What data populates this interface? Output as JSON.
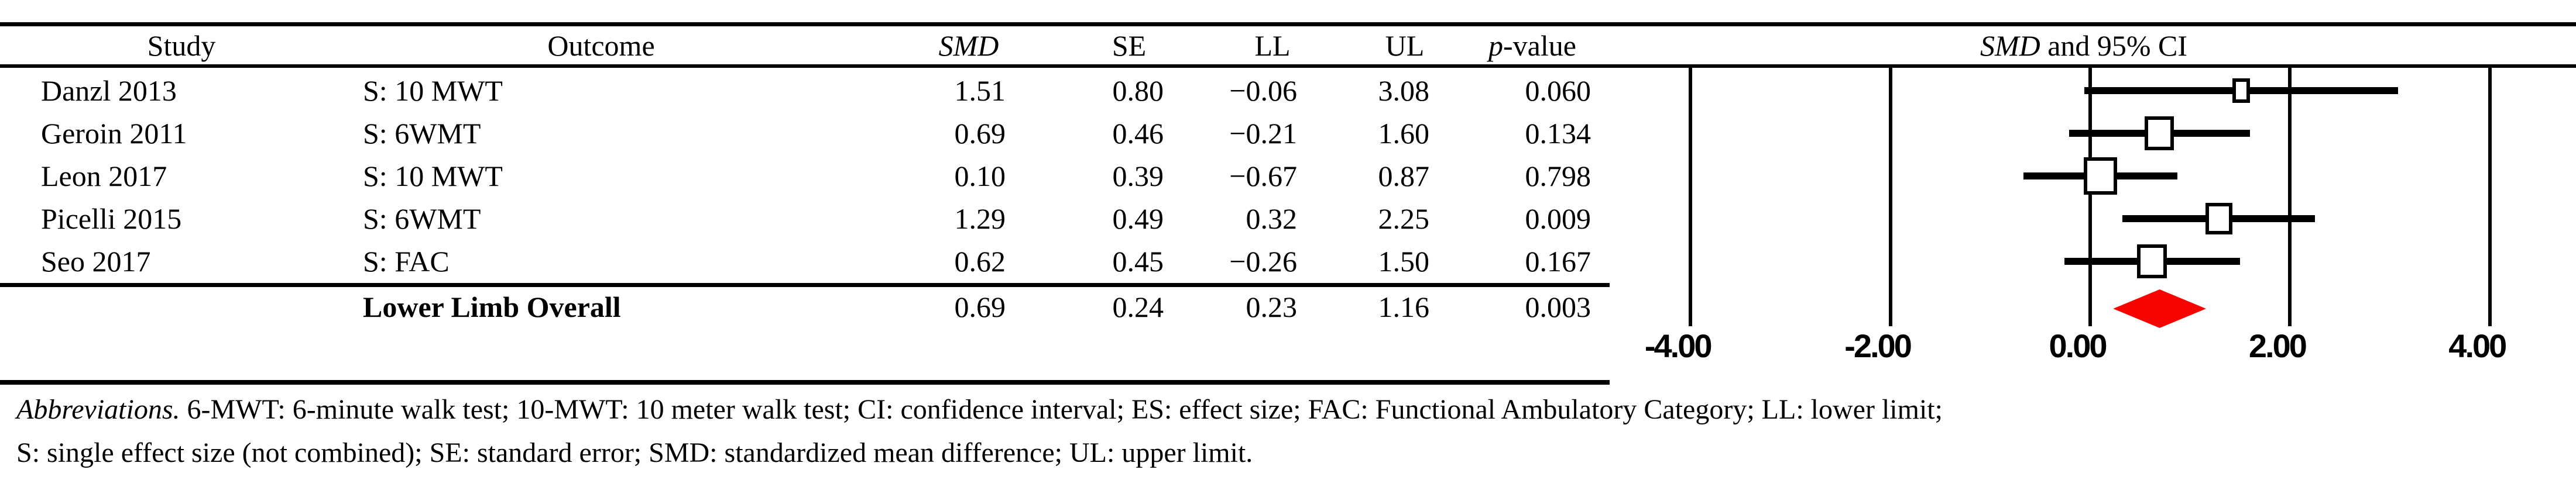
{
  "table": {
    "headers": {
      "study": "Study",
      "outcome": "Outcome",
      "smd": "SMD",
      "se": "SE",
      "ll": "LL",
      "ul": "UL",
      "p_italic": "p",
      "p_rest": "-value"
    },
    "rows": [
      {
        "study": "Danzl 2013",
        "outcome": "S: 10 MWT",
        "smd": "1.51",
        "se": "0.80",
        "ll": "−0.06",
        "ul": "3.08",
        "p": "0.060"
      },
      {
        "study": "Geroin 2011",
        "outcome": "S: 6WMT",
        "smd": "0.69",
        "se": "0.46",
        "ll": "−0.21",
        "ul": "1.60",
        "p": "0.134"
      },
      {
        "study": "Leon 2017",
        "outcome": "S: 10 MWT",
        "smd": "0.10",
        "se": "0.39",
        "ll": "−0.67",
        "ul": "0.87",
        "p": "0.798"
      },
      {
        "study": "Picelli 2015",
        "outcome": "S: 6WMT",
        "smd": "1.29",
        "se": "0.49",
        "ll": "0.32",
        "ul": "2.25",
        "p": "0.009"
      },
      {
        "study": "Seo 2017",
        "outcome": "S: FAC",
        "smd": "0.62",
        "se": "0.45",
        "ll": "−0.26",
        "ul": "1.50",
        "p": "0.167"
      }
    ],
    "overall": {
      "label": "Lower Limb Overall",
      "smd": "0.69",
      "se": "0.24",
      "ll": "0.23",
      "ul": "1.16",
      "p": "0.003"
    }
  },
  "plot_header": {
    "italic": "SMD",
    "rest": " and 95% CI"
  },
  "chart_data": {
    "type": "forest",
    "title": "SMD and 95% CI",
    "x_ticks": [
      "-4.00",
      "-2.00",
      "0.00",
      "2.00",
      "4.00"
    ],
    "x_tick_values": [
      -4,
      -2,
      0,
      2,
      4
    ],
    "xlim": [
      -4.7,
      4.7
    ],
    "grid": "vertical lines at ticks",
    "legend_position": "none",
    "studies": [
      {
        "label": "Danzl 2013",
        "smd": 1.51,
        "se": 0.8,
        "ll": -0.06,
        "ul": 3.08,
        "p": 0.06
      },
      {
        "label": "Geroin 2011",
        "smd": 0.69,
        "se": 0.46,
        "ll": -0.21,
        "ul": 1.6,
        "p": 0.134
      },
      {
        "label": "Leon 2017",
        "smd": 0.1,
        "se": 0.39,
        "ll": -0.67,
        "ul": 0.87,
        "p": 0.798
      },
      {
        "label": "Picelli 2015",
        "smd": 1.29,
        "se": 0.49,
        "ll": 0.32,
        "ul": 2.25,
        "p": 0.009
      },
      {
        "label": "Seo 2017",
        "smd": 0.62,
        "se": 0.45,
        "ll": -0.26,
        "ul": 1.5,
        "p": 0.167
      }
    ],
    "overall": {
      "label": "Lower Limb Overall",
      "smd": 0.69,
      "se": 0.24,
      "ll": 0.23,
      "ul": 1.16,
      "p": 0.003,
      "marker": "diamond"
    },
    "marker_color": "#ffffff",
    "diamond_color": "#f80400",
    "line_color": "#000000"
  },
  "footnote": {
    "lead": "Abbreviations.",
    "line1": " 6-MWT: 6-minute walk test; 10-MWT: 10 meter walk test; CI: confidence interval; ES: effect size; FAC: Functional Ambulatory Category; LL: lower limit;",
    "line2": "S: single effect size (not combined); SE: standard error; SMD: standardized mean difference; UL: upper limit."
  }
}
